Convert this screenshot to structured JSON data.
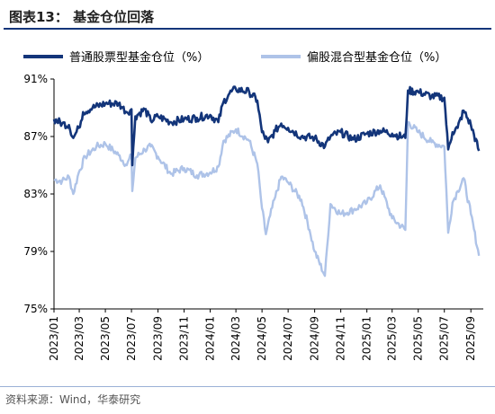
{
  "header": {
    "title": "图表13：  基金仓位回落",
    "accent": "#13357a"
  },
  "footer": {
    "source": "资料来源：Wind，华泰研究"
  },
  "chart_data": {
    "type": "line",
    "title": "",
    "xlabel": "",
    "ylabel": "",
    "ylim": [
      75,
      91
    ],
    "yticks": [
      "75%",
      "79%",
      "83%",
      "87%",
      "91%"
    ],
    "x_range": [
      "2023-01-01",
      "2025-09-30"
    ],
    "xticks": [
      "2023/01",
      "2023/03",
      "2023/05",
      "2023/07",
      "2023/09",
      "2023/11",
      "2024/01",
      "2024/03",
      "2024/05",
      "2024/07",
      "2024/09",
      "2024/11",
      "2025/01",
      "2025/03",
      "2025/05",
      "2025/07",
      "2025/09"
    ],
    "legend_position": "top",
    "grid": false,
    "series": [
      {
        "name": "普通股票型基金仓位（%）",
        "color": "#13357a",
        "points": [
          [
            "2023-01-01",
            88.2
          ],
          [
            "2023-01-20",
            87.9
          ],
          [
            "2023-02-05",
            87.8
          ],
          [
            "2023-02-15",
            86.9
          ],
          [
            "2023-02-28",
            87.6
          ],
          [
            "2023-03-10",
            88.7
          ],
          [
            "2023-04-01",
            89.0
          ],
          [
            "2023-05-01",
            89.3
          ],
          [
            "2023-06-01",
            89.3
          ],
          [
            "2023-06-10",
            89.0
          ],
          [
            "2023-06-20",
            88.7
          ],
          [
            "2023-07-01",
            88.9
          ],
          [
            "2023-07-03",
            85.0
          ],
          [
            "2023-07-10",
            88.4
          ],
          [
            "2023-08-01",
            88.9
          ],
          [
            "2023-08-15",
            88.1
          ],
          [
            "2023-09-01",
            88.4
          ],
          [
            "2023-10-01",
            88.0
          ],
          [
            "2023-11-01",
            88.2
          ],
          [
            "2023-12-01",
            88.3
          ],
          [
            "2024-01-01",
            88.5
          ],
          [
            "2024-01-20",
            88.0
          ],
          [
            "2024-02-01",
            89.4
          ],
          [
            "2024-02-15",
            90.0
          ],
          [
            "2024-03-01",
            90.3
          ],
          [
            "2024-04-01",
            90.1
          ],
          [
            "2024-04-20",
            89.5
          ],
          [
            "2024-05-01",
            87.3
          ],
          [
            "2024-05-15",
            86.6
          ],
          [
            "2024-06-01",
            87.4
          ],
          [
            "2024-06-15",
            87.9
          ],
          [
            "2024-07-01",
            87.6
          ],
          [
            "2024-08-01",
            87.0
          ],
          [
            "2024-09-01",
            86.9
          ],
          [
            "2024-09-25",
            86.3
          ],
          [
            "2024-10-08",
            87.0
          ],
          [
            "2024-11-01",
            87.3
          ],
          [
            "2024-12-01",
            86.8
          ],
          [
            "2025-01-01",
            87.2
          ],
          [
            "2025-02-01",
            87.4
          ],
          [
            "2025-03-01",
            87.2
          ],
          [
            "2025-04-01",
            86.9
          ],
          [
            "2025-04-07",
            90.2
          ],
          [
            "2025-05-01",
            90.1
          ],
          [
            "2025-06-01",
            89.8
          ],
          [
            "2025-07-01",
            89.7
          ],
          [
            "2025-07-10",
            86.1
          ],
          [
            "2025-07-20",
            87.3
          ],
          [
            "2025-08-01",
            87.6
          ],
          [
            "2025-08-15",
            88.8
          ],
          [
            "2025-09-01",
            87.8
          ],
          [
            "2025-09-20",
            86.0
          ]
        ]
      },
      {
        "name": "偏股混合型基金仓位（%）",
        "color": "#aec3e8",
        "points": [
          [
            "2023-01-01",
            84.0
          ],
          [
            "2023-01-20",
            83.9
          ],
          [
            "2023-02-05",
            84.2
          ],
          [
            "2023-02-15",
            83.0
          ],
          [
            "2023-02-28",
            84.5
          ],
          [
            "2023-03-15",
            85.6
          ],
          [
            "2023-04-10",
            86.3
          ],
          [
            "2023-05-01",
            86.5
          ],
          [
            "2023-06-01",
            85.7
          ],
          [
            "2023-06-20",
            85.0
          ],
          [
            "2023-07-01",
            85.7
          ],
          [
            "2023-07-03",
            83.2
          ],
          [
            "2023-07-10",
            85.5
          ],
          [
            "2023-08-01",
            86.1
          ],
          [
            "2023-08-15",
            86.3
          ],
          [
            "2023-09-01",
            85.6
          ],
          [
            "2023-10-01",
            84.4
          ],
          [
            "2023-11-01",
            84.8
          ],
          [
            "2023-12-01",
            84.3
          ],
          [
            "2024-01-01",
            84.5
          ],
          [
            "2024-01-20",
            84.9
          ],
          [
            "2024-02-01",
            86.7
          ],
          [
            "2024-03-01",
            87.5
          ],
          [
            "2024-04-01",
            86.7
          ],
          [
            "2024-04-20",
            85.1
          ],
          [
            "2024-05-01",
            82.0
          ],
          [
            "2024-05-10",
            80.2
          ],
          [
            "2024-05-20",
            81.5
          ],
          [
            "2024-06-01",
            82.8
          ],
          [
            "2024-06-15",
            84.2
          ],
          [
            "2024-07-01",
            83.8
          ],
          [
            "2024-08-01",
            82.6
          ],
          [
            "2024-08-20",
            80.5
          ],
          [
            "2024-09-01",
            79.0
          ],
          [
            "2024-09-25",
            77.3
          ],
          [
            "2024-10-08",
            82.3
          ],
          [
            "2024-11-01",
            81.6
          ],
          [
            "2024-12-01",
            81.9
          ],
          [
            "2025-01-01",
            82.4
          ],
          [
            "2025-02-01",
            83.6
          ],
          [
            "2025-03-01",
            81.3
          ],
          [
            "2025-04-01",
            80.5
          ],
          [
            "2025-04-07",
            88.0
          ],
          [
            "2025-05-01",
            87.3
          ],
          [
            "2025-06-01",
            86.6
          ],
          [
            "2025-07-01",
            86.3
          ],
          [
            "2025-07-10",
            80.3
          ],
          [
            "2025-07-20",
            82.4
          ],
          [
            "2025-08-01",
            83.2
          ],
          [
            "2025-08-15",
            84.1
          ],
          [
            "2025-09-01",
            81.6
          ],
          [
            "2025-09-20",
            78.7
          ]
        ]
      }
    ]
  }
}
